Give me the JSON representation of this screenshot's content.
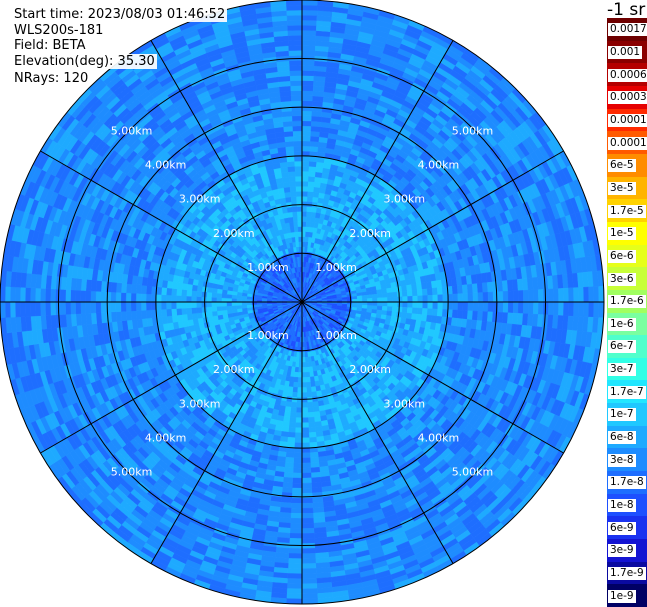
{
  "info": {
    "start_time": "Start time: 2023/08/03 01:46:52",
    "instrument": "WLS200s-181",
    "field": "Field: BETA",
    "elevation": "Elevation(deg): 35.30",
    "nrays": "NRays: 120"
  },
  "colorbar": {
    "title": "-1 sr",
    "labels": [
      "0.0017",
      "0.001",
      "0.0006",
      "0.0003",
      "0.00017",
      "0.0001",
      "6e-5",
      "3e-5",
      "1.7e-5",
      "1e-5",
      "6e-6",
      "3e-6",
      "1.7e-6",
      "1e-6",
      "6e-7",
      "3e-7",
      "1.7e-7",
      "1e-7",
      "6e-8",
      "3e-8",
      "1.7e-8",
      "1e-8",
      "6e-9",
      "3e-9",
      "1.7e-9",
      "1e-9"
    ],
    "colors": [
      "#6e0000",
      "#8a0000",
      "#b40000",
      "#e60000",
      "#ff2a00",
      "#ff5a00",
      "#ff8c00",
      "#ffb400",
      "#ffd200",
      "#ffff00",
      "#e6ff1a",
      "#c8ff38",
      "#a0ff60",
      "#7affa0",
      "#50ffcc",
      "#32ffe6",
      "#22e6ff",
      "#20c8ff",
      "#1eaaff",
      "#1e8cff",
      "#1e6eff",
      "#1e50ff",
      "#1a32f0",
      "#1414d2",
      "#0a0aa0",
      "#000064"
    ]
  },
  "chart_data": {
    "type": "heatmap",
    "title": "",
    "projection": "polar (PPI scan)",
    "nrays": 120,
    "range_rings_km": [
      1,
      2,
      3,
      4,
      5
    ],
    "range_ring_labels": [
      "1.00km",
      "2.00km",
      "3.00km",
      "4.00km",
      "5.00km"
    ],
    "max_range_km": 6.2,
    "field": "BETA",
    "colorscale": "log",
    "value_range": [
      1e-09,
      0.0017
    ],
    "regions": [
      {
        "range_km": [
          0,
          1.0
        ],
        "typical_value": 1.7e-08
      },
      {
        "range_km": [
          1.0,
          3.0
        ],
        "typical_value": 6e-08
      },
      {
        "range_km": [
          3.0,
          6.2
        ],
        "typical_value": 3e-08
      }
    ]
  }
}
